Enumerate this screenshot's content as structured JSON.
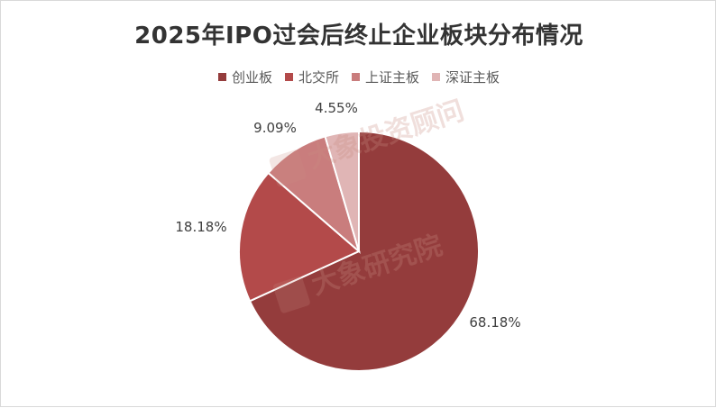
{
  "chart_data": {
    "type": "pie",
    "title": "2025年IPO过会后终止企业板块分布情况",
    "legend_position": "top",
    "series": [
      {
        "name": "创业板",
        "value": 68.18,
        "label": "68.18%",
        "color": "#943c3c"
      },
      {
        "name": "北交所",
        "value": 18.18,
        "label": "18.18%",
        "color": "#b34a4a"
      },
      {
        "name": "上证主板",
        "value": 9.09,
        "label": "9.09%",
        "color": "#c97d7d"
      },
      {
        "name": "深证主板",
        "value": 4.55,
        "label": "4.55%",
        "color": "#e0b5b5"
      }
    ]
  },
  "watermarks": [
    "大象投资顾问",
    "大象研究院"
  ]
}
